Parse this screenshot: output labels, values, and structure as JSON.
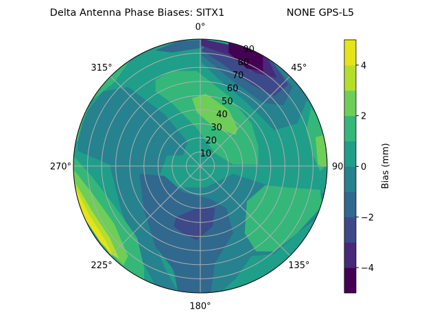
{
  "chart_data": {
    "type": "contour",
    "projection": "polar",
    "title": "Delta Antenna Phase Biases: SITX1",
    "title_right": "NONE GPS-L5",
    "angle_ticks": [
      "0°",
      "45°",
      "90°",
      "135°",
      "180°",
      "225°",
      "270°",
      "315°"
    ],
    "angle_tick_values": [
      0,
      45,
      90,
      135,
      180,
      225,
      270,
      315
    ],
    "radial_ticks": [
      "10",
      "20",
      "30",
      "40",
      "50",
      "60",
      "70",
      "80",
      "90"
    ],
    "radial_tick_values": [
      10,
      20,
      30,
      40,
      50,
      60,
      70,
      80,
      90
    ],
    "rlim": [
      0,
      90
    ],
    "theta_zero": "N",
    "theta_direction": "clockwise",
    "grid": true,
    "levels": [
      -5,
      -4,
      -3,
      -2,
      -1,
      0,
      1,
      2,
      3,
      4,
      5
    ],
    "colormap": "viridis",
    "level_colors": [
      "#440154",
      "#482878",
      "#3e4989",
      "#31688e",
      "#26828e",
      "#1f9e89",
      "#35b779",
      "#6ece58",
      "#b5de2b",
      "#e5e419"
    ],
    "colorbar": {
      "label": "Bias (mm)",
      "ticks": [
        "−4",
        "−2",
        "0",
        "2",
        "4"
      ],
      "tick_values": [
        -4,
        -2,
        0,
        2,
        4
      ],
      "range": [
        -5,
        5
      ]
    }
  }
}
